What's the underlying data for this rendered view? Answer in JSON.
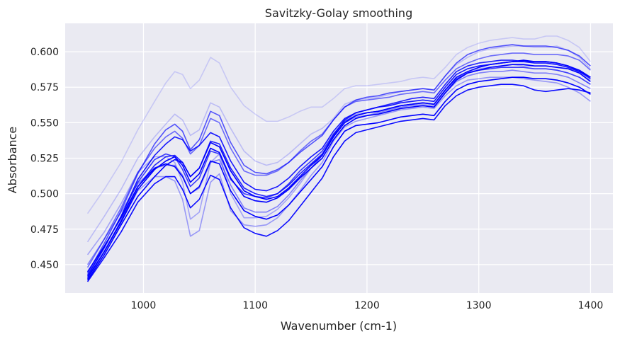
{
  "chart_data": {
    "type": "line",
    "title": "Savitzky-Golay smoothing",
    "xlabel": "Wavenumber (cm-1)",
    "ylabel": "Absorbance",
    "xlim": [
      930,
      1420
    ],
    "ylim": [
      0.43,
      0.62
    ],
    "xticks": [
      1000,
      1100,
      1200,
      1300,
      1400
    ],
    "yticks": [
      0.45,
      0.475,
      0.5,
      0.525,
      0.55,
      0.575,
      0.6
    ],
    "ytick_labels": [
      "0.450",
      "0.475",
      "0.500",
      "0.525",
      "0.550",
      "0.575",
      "0.600"
    ],
    "grid": true,
    "line_color": "#0000ff",
    "plot_background": "#eaeaf2",
    "grid_color": "#ffffff",
    "x": [
      950,
      965,
      980,
      995,
      1010,
      1020,
      1028,
      1035,
      1042,
      1050,
      1060,
      1068,
      1078,
      1090,
      1100,
      1110,
      1120,
      1130,
      1140,
      1150,
      1160,
      1170,
      1180,
      1190,
      1200,
      1210,
      1220,
      1230,
      1240,
      1250,
      1260,
      1270,
      1280,
      1290,
      1300,
      1310,
      1320,
      1330,
      1340,
      1350,
      1360,
      1370,
      1380,
      1390,
      1400
    ],
    "series": [
      {
        "opacity": 0.15,
        "values": [
          0.486,
          0.503,
          0.522,
          0.545,
          0.565,
          0.578,
          0.586,
          0.584,
          0.574,
          0.58,
          0.596,
          0.592,
          0.575,
          0.562,
          0.556,
          0.551,
          0.551,
          0.554,
          0.558,
          0.561,
          0.561,
          0.567,
          0.574,
          0.576,
          0.576,
          0.577,
          0.578,
          0.579,
          0.581,
          0.582,
          0.581,
          0.589,
          0.598,
          0.603,
          0.606,
          0.608,
          0.609,
          0.61,
          0.609,
          0.609,
          0.611,
          0.611,
          0.608,
          0.603,
          0.593
        ]
      },
      {
        "opacity": 0.2,
        "values": [
          0.466,
          0.484,
          0.503,
          0.525,
          0.54,
          0.549,
          0.556,
          0.552,
          0.541,
          0.545,
          0.564,
          0.561,
          0.546,
          0.53,
          0.523,
          0.52,
          0.522,
          0.528,
          0.535,
          0.542,
          0.546,
          0.553,
          0.563,
          0.566,
          0.567,
          0.568,
          0.57,
          0.572,
          0.573,
          0.574,
          0.573,
          0.583,
          0.591,
          0.596,
          0.6,
          0.602,
          0.603,
          0.604,
          0.604,
          0.603,
          0.603,
          0.604,
          0.601,
          0.596,
          0.588
        ]
      },
      {
        "opacity": 0.3,
        "values": [
          0.457,
          0.473,
          0.493,
          0.515,
          0.526,
          0.526,
          0.522,
          0.508,
          0.482,
          0.487,
          0.522,
          0.528,
          0.5,
          0.483,
          0.483,
          0.484,
          0.489,
          0.497,
          0.507,
          0.518,
          0.527,
          0.542,
          0.552,
          0.556,
          0.557,
          0.558,
          0.56,
          0.562,
          0.563,
          0.563,
          0.562,
          0.572,
          0.58,
          0.585,
          0.588,
          0.589,
          0.59,
          0.591,
          0.59,
          0.59,
          0.59,
          0.589,
          0.588,
          0.585,
          0.58
        ]
      },
      {
        "opacity": 0.35,
        "values": [
          0.441,
          0.46,
          0.48,
          0.502,
          0.512,
          0.512,
          0.509,
          0.496,
          0.47,
          0.474,
          0.508,
          0.514,
          0.488,
          0.478,
          0.477,
          0.478,
          0.483,
          0.492,
          0.502,
          0.513,
          0.522,
          0.537,
          0.547,
          0.551,
          0.553,
          0.555,
          0.557,
          0.559,
          0.56,
          0.561,
          0.56,
          0.569,
          0.576,
          0.58,
          0.581,
          0.582,
          0.582,
          0.582,
          0.581,
          0.58,
          0.579,
          0.578,
          0.575,
          0.571,
          0.565
        ]
      },
      {
        "opacity": 0.45,
        "values": [
          0.45,
          0.468,
          0.487,
          0.507,
          0.518,
          0.52,
          0.52,
          0.513,
          0.5,
          0.504,
          0.522,
          0.524,
          0.506,
          0.49,
          0.487,
          0.487,
          0.491,
          0.499,
          0.509,
          0.518,
          0.527,
          0.541,
          0.55,
          0.554,
          0.555,
          0.557,
          0.559,
          0.561,
          0.562,
          0.562,
          0.561,
          0.571,
          0.579,
          0.583,
          0.585,
          0.586,
          0.586,
          0.587,
          0.586,
          0.585,
          0.585,
          0.584,
          0.582,
          0.578,
          0.574
        ]
      },
      {
        "opacity": 0.55,
        "values": [
          0.448,
          0.468,
          0.49,
          0.515,
          0.532,
          0.54,
          0.544,
          0.539,
          0.528,
          0.534,
          0.553,
          0.55,
          0.532,
          0.516,
          0.513,
          0.513,
          0.516,
          0.522,
          0.53,
          0.537,
          0.542,
          0.552,
          0.561,
          0.565,
          0.566,
          0.567,
          0.568,
          0.57,
          0.571,
          0.572,
          0.571,
          0.58,
          0.588,
          0.592,
          0.595,
          0.597,
          0.598,
          0.599,
          0.599,
          0.598,
          0.598,
          0.598,
          0.597,
          0.594,
          0.587
        ]
      },
      {
        "opacity": 0.65,
        "values": [
          0.444,
          0.465,
          0.488,
          0.514,
          0.535,
          0.545,
          0.549,
          0.544,
          0.531,
          0.538,
          0.558,
          0.555,
          0.536,
          0.52,
          0.515,
          0.514,
          0.517,
          0.522,
          0.529,
          0.535,
          0.541,
          0.552,
          0.561,
          0.566,
          0.568,
          0.569,
          0.571,
          0.572,
          0.573,
          0.574,
          0.573,
          0.583,
          0.592,
          0.598,
          0.601,
          0.603,
          0.604,
          0.605,
          0.604,
          0.604,
          0.604,
          0.603,
          0.601,
          0.597,
          0.59
        ]
      },
      {
        "opacity": 0.75,
        "values": [
          0.443,
          0.462,
          0.484,
          0.508,
          0.524,
          0.528,
          0.526,
          0.517,
          0.505,
          0.511,
          0.53,
          0.528,
          0.51,
          0.5,
          0.498,
          0.497,
          0.5,
          0.507,
          0.516,
          0.523,
          0.53,
          0.542,
          0.551,
          0.555,
          0.557,
          0.558,
          0.56,
          0.562,
          0.563,
          0.564,
          0.563,
          0.573,
          0.581,
          0.585,
          0.587,
          0.588,
          0.589,
          0.589,
          0.589,
          0.588,
          0.588,
          0.587,
          0.585,
          0.582,
          0.577
        ]
      },
      {
        "opacity": 0.85,
        "values": [
          0.44,
          0.459,
          0.481,
          0.505,
          0.52,
          0.526,
          0.527,
          0.522,
          0.512,
          0.518,
          0.537,
          0.535,
          0.518,
          0.504,
          0.5,
          0.498,
          0.5,
          0.506,
          0.514,
          0.521,
          0.528,
          0.541,
          0.552,
          0.557,
          0.559,
          0.561,
          0.563,
          0.565,
          0.567,
          0.568,
          0.567,
          0.577,
          0.586,
          0.59,
          0.592,
          0.593,
          0.594,
          0.594,
          0.593,
          0.593,
          0.593,
          0.592,
          0.59,
          0.586,
          0.581
        ]
      },
      {
        "opacity": 0.9,
        "values": [
          0.442,
          0.462,
          0.484,
          0.51,
          0.527,
          0.535,
          0.54,
          0.538,
          0.53,
          0.534,
          0.543,
          0.54,
          0.523,
          0.508,
          0.503,
          0.502,
          0.505,
          0.511,
          0.519,
          0.526,
          0.532,
          0.544,
          0.553,
          0.557,
          0.559,
          0.561,
          0.562,
          0.564,
          0.565,
          0.566,
          0.565,
          0.575,
          0.584,
          0.588,
          0.59,
          0.591,
          0.592,
          0.593,
          0.593,
          0.592,
          0.592,
          0.591,
          0.589,
          0.586,
          0.582
        ]
      },
      {
        "opacity": 0.95,
        "values": [
          0.438,
          0.455,
          0.473,
          0.494,
          0.507,
          0.512,
          0.512,
          0.503,
          0.49,
          0.496,
          0.513,
          0.51,
          0.49,
          0.476,
          0.472,
          0.47,
          0.474,
          0.481,
          0.491,
          0.501,
          0.511,
          0.526,
          0.537,
          0.543,
          0.545,
          0.547,
          0.549,
          0.551,
          0.552,
          0.553,
          0.552,
          0.562,
          0.569,
          0.573,
          0.575,
          0.576,
          0.577,
          0.577,
          0.576,
          0.573,
          0.572,
          0.573,
          0.574,
          0.573,
          0.571
        ]
      },
      {
        "opacity": 1.0,
        "values": [
          0.445,
          0.463,
          0.483,
          0.505,
          0.518,
          0.521,
          0.519,
          0.512,
          0.5,
          0.505,
          0.523,
          0.521,
          0.502,
          0.488,
          0.484,
          0.482,
          0.485,
          0.492,
          0.501,
          0.51,
          0.519,
          0.533,
          0.544,
          0.548,
          0.549,
          0.55,
          0.552,
          0.554,
          0.555,
          0.556,
          0.555,
          0.565,
          0.573,
          0.577,
          0.579,
          0.58,
          0.581,
          0.582,
          0.582,
          0.581,
          0.581,
          0.58,
          0.578,
          0.575,
          0.57
        ]
      },
      {
        "opacity": 1.0,
        "values": [
          0.439,
          0.457,
          0.478,
          0.498,
          0.512,
          0.52,
          0.524,
          0.522,
          0.512,
          0.518,
          0.536,
          0.533,
          0.516,
          0.502,
          0.498,
          0.496,
          0.498,
          0.504,
          0.512,
          0.52,
          0.527,
          0.54,
          0.55,
          0.555,
          0.557,
          0.558,
          0.56,
          0.562,
          0.563,
          0.564,
          0.563,
          0.573,
          0.582,
          0.586,
          0.589,
          0.591,
          0.592,
          0.593,
          0.594,
          0.593,
          0.593,
          0.592,
          0.59,
          0.587,
          0.582
        ]
      },
      {
        "opacity": 1.0,
        "values": [
          0.441,
          0.459,
          0.48,
          0.503,
          0.517,
          0.523,
          0.526,
          0.52,
          0.508,
          0.514,
          0.532,
          0.529,
          0.511,
          0.498,
          0.495,
          0.494,
          0.497,
          0.503,
          0.511,
          0.518,
          0.525,
          0.538,
          0.548,
          0.553,
          0.555,
          0.556,
          0.558,
          0.56,
          0.561,
          0.562,
          0.561,
          0.571,
          0.58,
          0.585,
          0.587,
          0.589,
          0.59,
          0.591,
          0.591,
          0.59,
          0.59,
          0.589,
          0.588,
          0.585,
          0.579
        ]
      }
    ]
  }
}
